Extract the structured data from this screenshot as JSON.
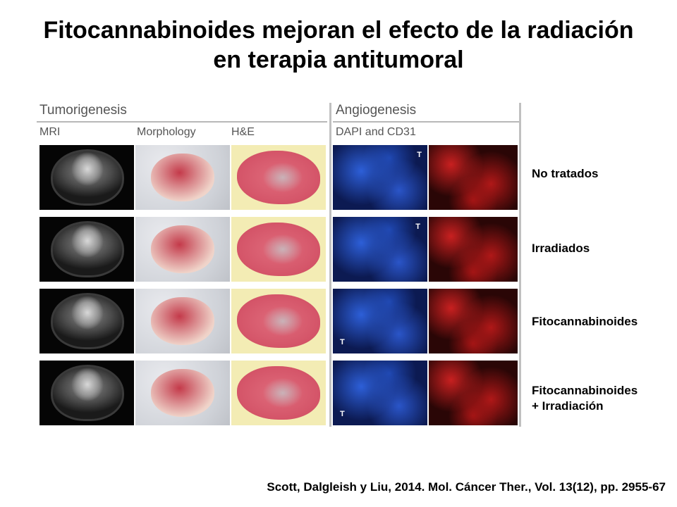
{
  "title": {
    "line1": "Fitocannabinoides mejoran el efecto de la radiación",
    "line2": "en terapia antitumoral"
  },
  "figure": {
    "section_left": "Tumorigenesis",
    "section_right": "Angiogenesis",
    "columns": [
      "MRI",
      "Morphology",
      "H&E",
      "DAPI and CD31"
    ],
    "t_marker": "T"
  },
  "rows": [
    {
      "label_line1": "No tratados",
      "label_line2": ""
    },
    {
      "label_line1": "Irradiados",
      "label_line2": ""
    },
    {
      "label_line1": "Fitocannabinoides",
      "label_line2": ""
    },
    {
      "label_line1": "Fitocannabinoides",
      "label_line2": "+ Irradiación"
    }
  ],
  "citation": "Scott, Dalgleish y Liu, 2014. Mol. Cáncer Ther., Vol. 13(12), pp. 2955-67"
}
